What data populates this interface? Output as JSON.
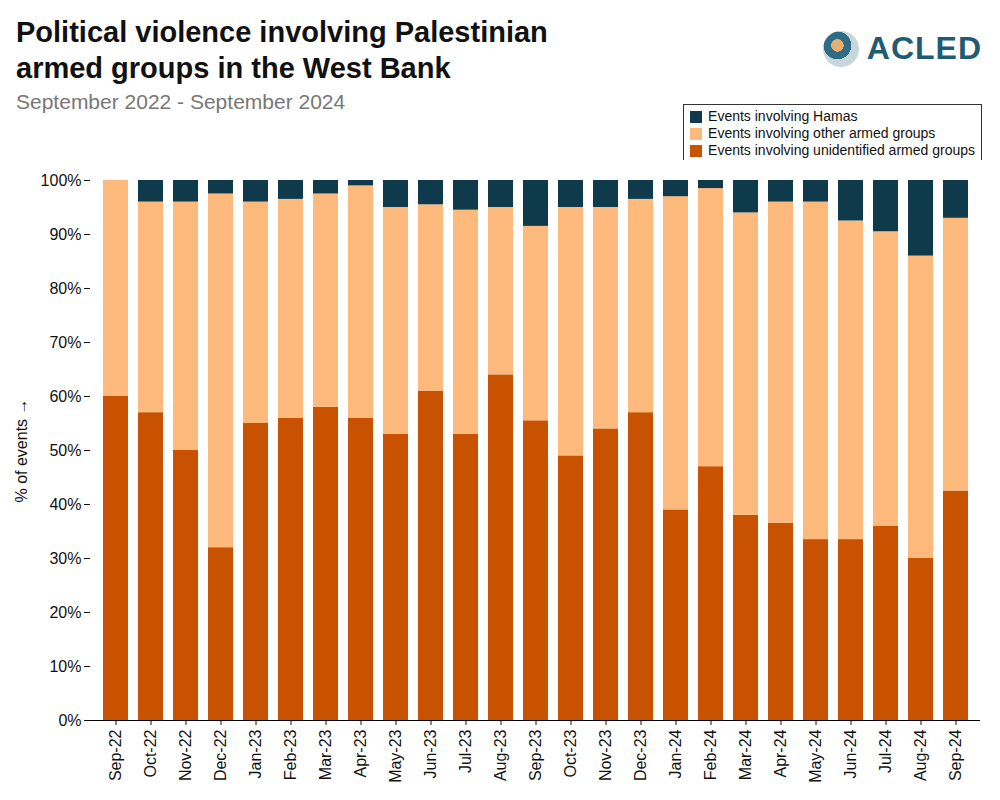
{
  "chart_data": {
    "type": "bar",
    "stacked": true,
    "title": "Political violence involving Palestinian armed groups in the West Bank",
    "subtitle": "September 2022 - September 2024",
    "brand": "ACLED",
    "y_label": "% of events",
    "legend": "top-right",
    "categories": [
      "Sep-22",
      "Oct-22",
      "Nov-22",
      "Dec-22",
      "Jan-23",
      "Feb-23",
      "Mar-23",
      "Apr-23",
      "May-23",
      "Jun-23",
      "Jul-23",
      "Aug-23",
      "Sep-23",
      "Oct-23",
      "Nov-23",
      "Dec-23",
      "Jan-24",
      "Feb-24",
      "Mar-24",
      "Apr-24",
      "May-24",
      "Jun-24",
      "Jul-24",
      "Aug-24",
      "Sep-24"
    ],
    "series": [
      {
        "name": "Events involving Hamas",
        "color": "#0e3a4b",
        "values": [
          0,
          4,
          4,
          2.5,
          4,
          3.5,
          2.5,
          1,
          5,
          4.5,
          5.5,
          5,
          8.5,
          5,
          5,
          3.5,
          3,
          1.5,
          6,
          4,
          4,
          7.5,
          9.5,
          14,
          7
        ]
      },
      {
        "name": "Events involving other armed groups",
        "color": "#fdba7c",
        "values": [
          40,
          39,
          46,
          65.5,
          41,
          40.5,
          39.5,
          43,
          42,
          34.5,
          41.5,
          31,
          36,
          46,
          41,
          39.5,
          58,
          51.5,
          56,
          59.5,
          62.5,
          59,
          54.5,
          56,
          50.5
        ]
      },
      {
        "name": "Events involving unidentified armed groups",
        "color": "#c95200",
        "values": [
          60,
          57,
          50,
          32,
          55,
          56,
          58,
          56,
          53,
          61,
          53,
          64,
          55.5,
          49,
          54,
          57,
          39,
          47,
          38,
          36.5,
          33.5,
          33.5,
          36,
          30,
          42.5
        ]
      }
    ],
    "ylim": [
      0,
      100
    ],
    "yticks": [
      {
        "value": 0,
        "label": "0%"
      },
      {
        "value": 10,
        "label": "10%"
      },
      {
        "value": 20,
        "label": "20%"
      },
      {
        "value": 30,
        "label": "30%"
      },
      {
        "value": 40,
        "label": "40%"
      },
      {
        "value": 50,
        "label": "50%"
      },
      {
        "value": 60,
        "label": "60%"
      },
      {
        "value": 70,
        "label": "70%"
      },
      {
        "value": 80,
        "label": "80%"
      },
      {
        "value": 90,
        "label": "90%"
      },
      {
        "value": 100,
        "label": "100%"
      }
    ],
    "grid": false
  }
}
